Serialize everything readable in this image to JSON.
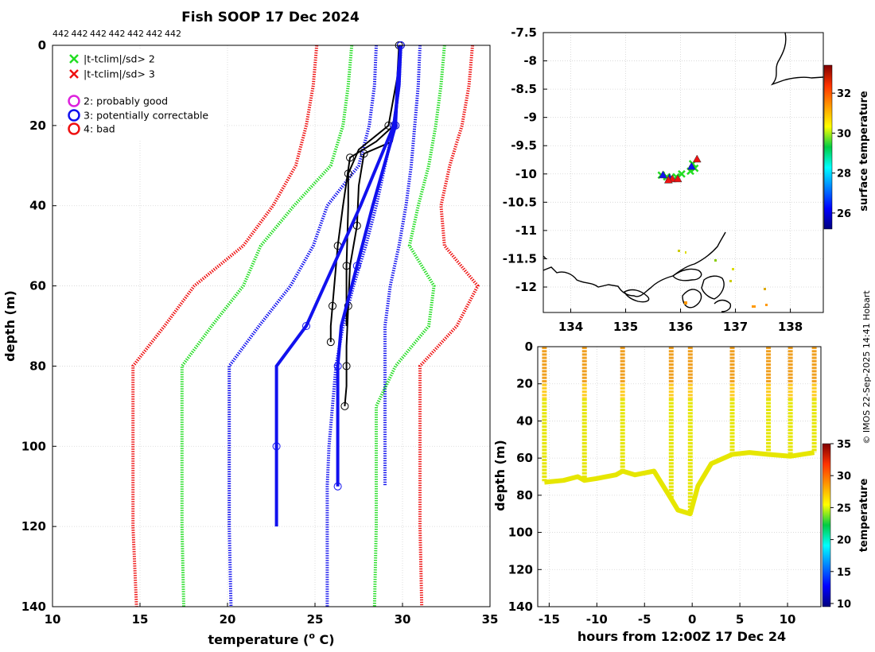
{
  "chart_data": [
    {
      "type": "line",
      "title": "Fish SOOP 17 Dec 2024",
      "subtitle_ids": [
        "442",
        "442",
        "442",
        "442",
        "442",
        "442",
        "442"
      ],
      "xlabel": "temperature (° C)",
      "xlabel_main": "temperature (",
      "xlabel_sup": "o",
      "xlabel_end": " C)",
      "ylabel": "depth (m)",
      "xlim": [
        10,
        35
      ],
      "ylim": [
        0,
        140
      ],
      "xticks": [
        "10",
        "15",
        "20",
        "25",
        "30",
        "35"
      ],
      "yticks": [
        "0",
        "20",
        "40",
        "60",
        "80",
        "100",
        "120",
        "140"
      ],
      "grid": true,
      "legend": [
        {
          "label": "|t-tclim|/sd> 2",
          "marker": "x",
          "color": "#22dd22"
        },
        {
          "label": "|t-tclim|/sd> 3",
          "marker": "x",
          "color": "#ee1111"
        },
        {
          "label": "2: probably good",
          "marker": "o",
          "color": "#dd22dd"
        },
        {
          "label": "3: potentially correctable",
          "marker": "o",
          "color": "#1111ee"
        },
        {
          "label": "4: bad",
          "marker": "o",
          "color": "#ee1111"
        }
      ],
      "series": [
        {
          "name": "climatology mean",
          "color": "#1111ee",
          "style": "dotted",
          "x": [
            29.9,
            29.8,
            29.5,
            29,
            28.5,
            27.9,
            27.2,
            26.6,
            26.2,
            26,
            25.8,
            25.7,
            25.7,
            25.7
          ],
          "y": [
            0,
            10,
            20,
            30,
            40,
            50,
            60,
            70,
            80,
            90,
            100,
            110,
            120,
            140
          ]
        },
        {
          "name": "mean - 1sd",
          "color": "#1111ee",
          "style": "dotted",
          "x": [
            28.5,
            28.4,
            28.1,
            27.5,
            25.7,
            24.9,
            23.6,
            21.8,
            20.1,
            20.1,
            20.1,
            20.1,
            20.1,
            20.2
          ],
          "y": [
            0,
            10,
            20,
            30,
            40,
            50,
            60,
            70,
            80,
            90,
            100,
            110,
            120,
            140
          ]
        },
        {
          "name": "mean + 1sd",
          "color": "#1111ee",
          "style": "dotted",
          "x": [
            31,
            30.9,
            30.7,
            30.5,
            30.2,
            29.8,
            29.3,
            29,
            29,
            29,
            29,
            29
          ],
          "y": [
            0,
            10,
            20,
            30,
            40,
            50,
            60,
            70,
            80,
            90,
            100,
            110
          ]
        },
        {
          "name": "mean - 2sd",
          "color": "#22dd22",
          "style": "dotted",
          "x": [
            27.1,
            26.9,
            26.6,
            25.9,
            23.8,
            21.9,
            20.9,
            19.1,
            17.4,
            17.4,
            17.4,
            17.4,
            17.4,
            17.5
          ],
          "y": [
            0,
            10,
            20,
            30,
            40,
            50,
            60,
            70,
            80,
            90,
            100,
            110,
            120,
            140
          ]
        },
        {
          "name": "mean + 2sd",
          "color": "#22dd22",
          "style": "dotted",
          "x": [
            32.4,
            32.2,
            31.9,
            31.5,
            30.9,
            30.4,
            31.8,
            31.5,
            29.6,
            28.5,
            28.5,
            28.5,
            28.5,
            28.4
          ],
          "y": [
            0,
            10,
            20,
            30,
            40,
            50,
            60,
            70,
            80,
            90,
            100,
            110,
            120,
            140
          ]
        },
        {
          "name": "mean - 3sd",
          "color": "#ee1111",
          "style": "dotted",
          "x": [
            25.1,
            24.9,
            24.5,
            23.9,
            22.6,
            20.9,
            18.1,
            16.4,
            14.6,
            14.6,
            14.6,
            14.6,
            14.6,
            14.8
          ],
          "y": [
            0,
            10,
            20,
            30,
            40,
            50,
            60,
            70,
            80,
            90,
            100,
            110,
            120,
            140
          ]
        },
        {
          "name": "mean + 3sd",
          "color": "#ee1111",
          "style": "dotted",
          "x": [
            34,
            33.8,
            33.4,
            32.7,
            32.2,
            32.4,
            34.3,
            33.1,
            31,
            31,
            31,
            31,
            31,
            31.1
          ],
          "y": [
            0,
            10,
            20,
            30,
            40,
            50,
            60,
            70,
            80,
            90,
            100,
            110,
            120,
            140
          ]
        },
        {
          "name": "profiles",
          "color": "#000000",
          "style": "solid",
          "x": [
            29.9,
            29.8,
            29.6,
            29.4,
            27.8,
            27.5,
            27.4,
            27,
            26.9,
            26.8,
            26.8,
            26.8,
            26.7
          ],
          "y": [
            0,
            10,
            20,
            24,
            27,
            35,
            45,
            55,
            65,
            75,
            80,
            85,
            90
          ]
        },
        {
          "name": "profiles",
          "color": "#000000",
          "style": "solid",
          "x": [
            29.9,
            29.8,
            29.5,
            28.5,
            27,
            26.6,
            26.3,
            26.1,
            26,
            25.9,
            25.9
          ],
          "y": [
            0,
            10,
            20,
            24,
            28,
            40,
            50,
            60,
            65,
            70,
            74
          ]
        },
        {
          "name": "profiles",
          "color": "#000000",
          "style": "solid",
          "x": [
            29.8,
            29.7,
            29.2,
            27.5,
            26.9,
            26.9,
            26.8,
            26.8
          ],
          "y": [
            0,
            8,
            20,
            26,
            32,
            40,
            55,
            70
          ]
        },
        {
          "name": "flagged profile (3)",
          "color": "#1111ee",
          "style": "solid",
          "x": [
            29.9,
            29.7,
            29.6,
            28.3,
            27.4,
            26.5,
            26.3,
            26.3,
            26.3
          ],
          "y": [
            0,
            10,
            20,
            40,
            55,
            70,
            80,
            100,
            110
          ]
        },
        {
          "name": "flagged profile (3)",
          "color": "#1111ee",
          "style": "solid",
          "x": [
            29.9,
            29.8,
            29.5,
            27.6,
            24.5,
            22.8,
            22.8,
            22.8
          ],
          "y": [
            0,
            10,
            20,
            40,
            70,
            80,
            100,
            120
          ]
        }
      ]
    },
    {
      "type": "scatter",
      "xlim": [
        133.5,
        138.6
      ],
      "ylim": [
        -12.45,
        -7.5
      ],
      "xticks": [
        "134",
        "135",
        "136",
        "137",
        "138"
      ],
      "yticks": [
        "-7.5",
        "-8",
        "-8.5",
        "-9",
        "-9.5",
        "-10",
        "-10.5",
        "-11",
        "-11.5",
        "-12"
      ],
      "colorbar_label": "surface temperature",
      "colorbar_range": [
        25.2,
        33.4
      ],
      "colorbar_ticks": [
        "26",
        "28",
        "30",
        "32"
      ],
      "points": [
        {
          "lon": 135.65,
          "lat": -10.02,
          "marker": "x",
          "color": "#22dd22"
        },
        {
          "lon": 135.75,
          "lat": -10.05,
          "marker": "x",
          "color": "#22dd22"
        },
        {
          "lon": 135.82,
          "lat": -10.07,
          "marker": "x",
          "color": "#22dd22"
        },
        {
          "lon": 135.92,
          "lat": -10.05,
          "marker": "x",
          "color": "#22dd22"
        },
        {
          "lon": 136.02,
          "lat": -10.0,
          "marker": "x",
          "color": "#22dd22"
        },
        {
          "lon": 136.18,
          "lat": -9.95,
          "marker": "x",
          "color": "#22dd22"
        },
        {
          "lon": 136.22,
          "lat": -9.82,
          "marker": "x",
          "color": "#22dd22"
        },
        {
          "lon": 136.26,
          "lat": -9.9,
          "marker": "x",
          "color": "#22dd22"
        },
        {
          "lon": 135.68,
          "lat": -10.03,
          "marker": "tri",
          "color": "#1111ee"
        },
        {
          "lon": 135.8,
          "lat": -10.08,
          "marker": "tri",
          "color": "#1111ee"
        },
        {
          "lon": 136.2,
          "lat": -9.88,
          "marker": "tri",
          "color": "#1111ee"
        },
        {
          "lon": 135.85,
          "lat": -10.1,
          "marker": "tri",
          "color": "#ee1111"
        },
        {
          "lon": 135.95,
          "lat": -10.1,
          "marker": "tri",
          "color": "#ee1111"
        },
        {
          "lon": 136.3,
          "lat": -9.75,
          "marker": "tri",
          "color": "#ee1111"
        },
        {
          "lon": 135.78,
          "lat": -10.12,
          "marker": "tri",
          "color": "#ee1111"
        }
      ]
    },
    {
      "type": "scatter",
      "xlabel": "hours from 12:00Z 17 Dec 24",
      "ylabel": "depth (m)",
      "xlim": [
        -16.2,
        13.5
      ],
      "ylim": [
        0,
        140
      ],
      "xticks": [
        "-15",
        "-10",
        "-5",
        "0",
        "5",
        "10"
      ],
      "yticks": [
        "0",
        "20",
        "40",
        "60",
        "80",
        "100",
        "120",
        "140"
      ],
      "colorbar_label": "temperature",
      "colorbar_range": [
        9.5,
        35
      ],
      "colorbar_ticks": [
        "10",
        "15",
        "20",
        "25",
        "30",
        "35"
      ],
      "casts_hours": [
        -15.5,
        -11.3,
        -7.3,
        -2.2,
        -0.2,
        4.2,
        8.0,
        10.3,
        12.8
      ],
      "bottom_depth": {
        "hours": [
          -15.5,
          -13.5,
          -12,
          -11.3,
          -10,
          -8,
          -7.3,
          -6,
          -4,
          -2.2,
          -1.5,
          -0.2,
          0.6,
          2,
          4.2,
          6,
          8,
          10.3,
          12.8
        ],
        "depth": [
          73,
          72,
          70,
          72,
          71,
          69,
          67,
          69,
          67,
          82,
          88,
          90,
          75,
          63,
          58,
          57,
          58,
          59,
          57
        ]
      }
    }
  ],
  "credit": "© IMOS 22-Sep-2025 14:41 Hobart"
}
